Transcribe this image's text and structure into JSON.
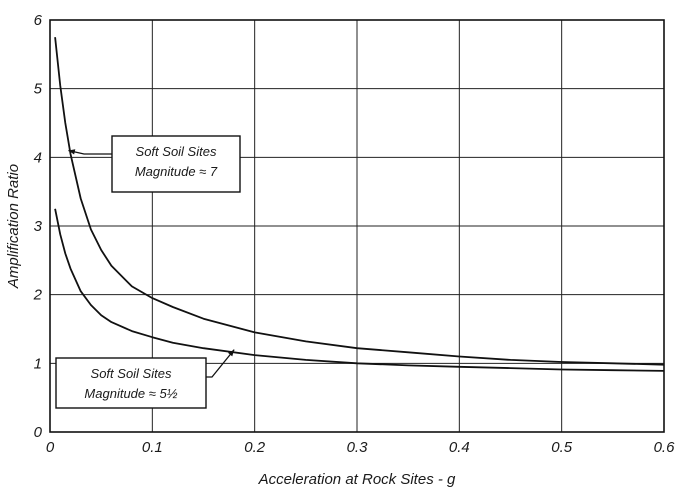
{
  "chart_data": {
    "type": "line",
    "title": "",
    "xlabel": "Acceleration at Rock Sites - g",
    "ylabel": "Amplification Ratio",
    "xlim": [
      0,
      0.6
    ],
    "ylim": [
      0,
      6
    ],
    "xticks": [
      "0",
      "0.1",
      "0.2",
      "0.3",
      "0.4",
      "0.5",
      "0.6"
    ],
    "yticks": [
      "0",
      "1",
      "2",
      "3",
      "4",
      "5",
      "6"
    ],
    "grid": true,
    "series": [
      {
        "name": "Soft Soil Sites Magnitude ≈ 7",
        "color": "#111111",
        "x": [
          0.005,
          0.01,
          0.015,
          0.02,
          0.03,
          0.04,
          0.05,
          0.06,
          0.08,
          0.1,
          0.12,
          0.15,
          0.2,
          0.25,
          0.3,
          0.35,
          0.4,
          0.45,
          0.5,
          0.55,
          0.6
        ],
        "y": [
          5.75,
          5.05,
          4.5,
          4.05,
          3.4,
          2.95,
          2.65,
          2.42,
          2.12,
          1.95,
          1.82,
          1.65,
          1.45,
          1.32,
          1.22,
          1.16,
          1.1,
          1.05,
          1.02,
          1.0,
          0.98
        ]
      },
      {
        "name": "Soft Soil Sites Magnitude ≈ 5½",
        "color": "#111111",
        "x": [
          0.005,
          0.01,
          0.015,
          0.02,
          0.03,
          0.04,
          0.05,
          0.06,
          0.08,
          0.1,
          0.12,
          0.15,
          0.2,
          0.25,
          0.3,
          0.35,
          0.4,
          0.45,
          0.5,
          0.55,
          0.6
        ],
        "y": [
          3.25,
          2.88,
          2.6,
          2.38,
          2.05,
          1.85,
          1.7,
          1.6,
          1.47,
          1.38,
          1.3,
          1.22,
          1.12,
          1.05,
          1.0,
          0.97,
          0.95,
          0.93,
          0.91,
          0.9,
          0.89
        ]
      }
    ],
    "annotations": [
      {
        "lines": [
          "Soft Soil Sites",
          "Magnitude ≈ 7"
        ],
        "target_series": 0,
        "arrow_to": [
          0.018,
          4.1
        ]
      },
      {
        "lines": [
          "Soft Soil Sites",
          "Magnitude ≈ 5½"
        ],
        "target_series": 1,
        "arrow_to": [
          0.18,
          1.2
        ]
      }
    ]
  }
}
